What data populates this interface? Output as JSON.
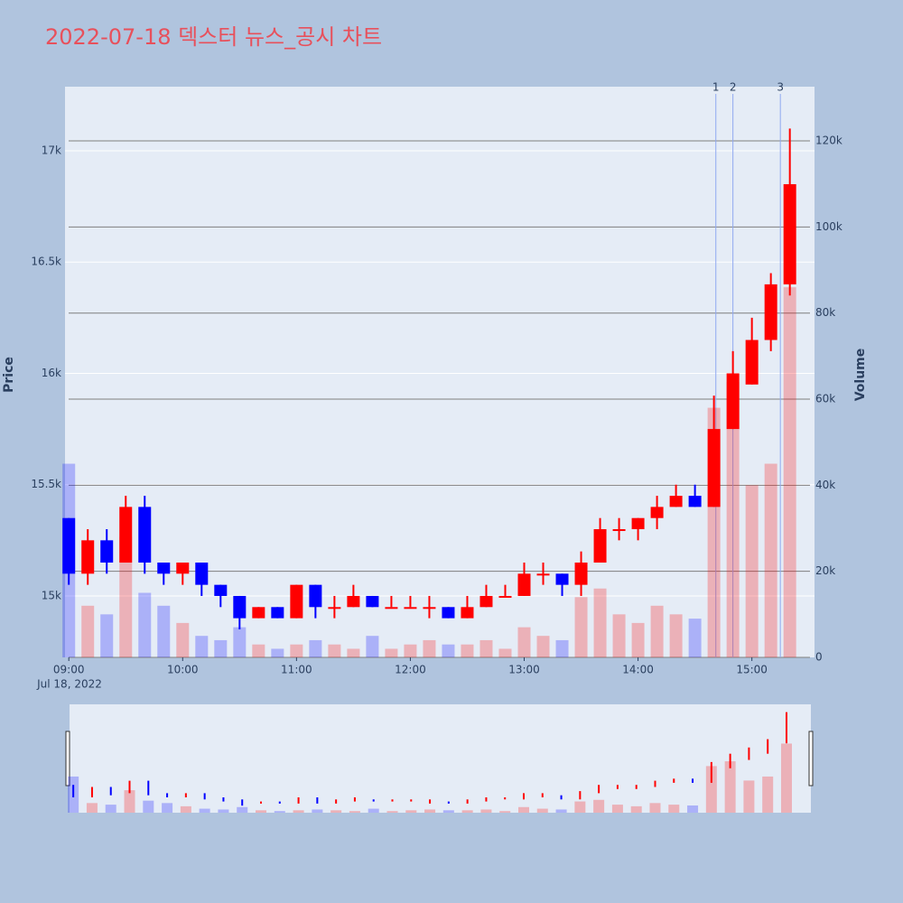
{
  "chart_data": {
    "type": "candlestick",
    "title": "2022-07-18 덱스터 뉴스_공시 차트",
    "y_label": "Price",
    "y2_label": "Volume",
    "date_label": "Jul 18, 2022",
    "increasing_color": "#ff0000",
    "decreasing_color": "#0000ff",
    "x": [
      "2022-07-18 09:00",
      "2022-07-18 09:10",
      "2022-07-18 09:20",
      "2022-07-18 09:30",
      "2022-07-18 09:40",
      "2022-07-18 09:50",
      "2022-07-18 10:00",
      "2022-07-18 10:10",
      "2022-07-18 10:20",
      "2022-07-18 10:30",
      "2022-07-18 10:40",
      "2022-07-18 10:50",
      "2022-07-18 11:00",
      "2022-07-18 11:10",
      "2022-07-18 11:20",
      "2022-07-18 11:30",
      "2022-07-18 11:40",
      "2022-07-18 11:50",
      "2022-07-18 12:00",
      "2022-07-18 12:10",
      "2022-07-18 12:20",
      "2022-07-18 12:30",
      "2022-07-18 12:40",
      "2022-07-18 12:50",
      "2022-07-18 13:00",
      "2022-07-18 13:10",
      "2022-07-18 13:20",
      "2022-07-18 13:30",
      "2022-07-18 13:40",
      "2022-07-18 13:50",
      "2022-07-18 14:00",
      "2022-07-18 14:10",
      "2022-07-18 14:20",
      "2022-07-18 14:30",
      "2022-07-18 14:40",
      "2022-07-18 14:50",
      "2022-07-18 15:00",
      "2022-07-18 15:10",
      "2022-07-18 15:20"
    ],
    "open": [
      15350,
      15100,
      15250,
      15150,
      15400,
      15150,
      15100,
      15150,
      15050,
      15000,
      14900,
      14950,
      14900,
      15050,
      14950,
      14950,
      15000,
      14950,
      14950,
      14950,
      14950,
      14900,
      14950,
      15000,
      15000,
      15100,
      15100,
      15050,
      15150,
      15300,
      15300,
      15350,
      15400,
      15450,
      15400,
      15750,
      15950,
      16150,
      16400
    ],
    "high": [
      15350,
      15300,
      15300,
      15450,
      15450,
      15150,
      15150,
      15150,
      15050,
      15000,
      14950,
      14950,
      15050,
      15050,
      15000,
      15050,
      15000,
      15000,
      15000,
      15000,
      14950,
      15000,
      15050,
      15050,
      15150,
      15150,
      15100,
      15200,
      15350,
      15350,
      15350,
      15450,
      15500,
      15500,
      15900,
      16100,
      16250,
      16450,
      17100
    ],
    "low": [
      15050,
      15050,
      15100,
      15150,
      15100,
      15050,
      15050,
      15000,
      14950,
      14850,
      14900,
      14900,
      14900,
      14900,
      14900,
      14950,
      14950,
      14950,
      14950,
      14900,
      14900,
      14900,
      14950,
      15000,
      15000,
      15050,
      15000,
      15000,
      15150,
      15250,
      15250,
      15300,
      15400,
      15400,
      15400,
      15750,
      15950,
      16100,
      16350
    ],
    "close": [
      15100,
      15250,
      15150,
      15400,
      15150,
      15100,
      15150,
      15050,
      15000,
      14900,
      14950,
      14900,
      15050,
      14950,
      14950,
      15000,
      14950,
      14950,
      14950,
      14950,
      14900,
      14950,
      15000,
      15000,
      15100,
      15100,
      15050,
      15150,
      15300,
      15300,
      15350,
      15400,
      15450,
      15400,
      15750,
      16000,
      16150,
      16400,
      16850
    ],
    "volume": [
      45000,
      12000,
      10000,
      28000,
      15000,
      12000,
      8000,
      5000,
      4000,
      7000,
      3000,
      2000,
      3000,
      4000,
      3000,
      2000,
      5000,
      2000,
      3000,
      4000,
      3000,
      3000,
      4000,
      2000,
      7000,
      5000,
      4000,
      14000,
      16000,
      10000,
      8000,
      12000,
      10000,
      9000,
      58000,
      64000,
      40000,
      45000,
      86000
    ],
    "xlim": [
      "2022-07-18 08:58",
      "2022-07-18 15:33"
    ],
    "xticks": [
      {
        "value": "2022-07-18 09:00",
        "label": "09:00"
      },
      {
        "value": "2022-07-18 10:00",
        "label": "10:00"
      },
      {
        "value": "2022-07-18 11:00",
        "label": "11:00"
      },
      {
        "value": "2022-07-18 12:00",
        "label": "12:00"
      },
      {
        "value": "2022-07-18 13:00",
        "label": "13:00"
      },
      {
        "value": "2022-07-18 14:00",
        "label": "14:00"
      },
      {
        "value": "2022-07-18 15:00",
        "label": "15:00"
      }
    ],
    "ylim": [
      14724,
      17288
    ],
    "yticks": [
      {
        "value": 15000,
        "label": "15k"
      },
      {
        "value": 15500,
        "label": "15.5k"
      },
      {
        "value": 16000,
        "label": "16k"
      },
      {
        "value": 16500,
        "label": "16.5k"
      },
      {
        "value": 17000,
        "label": "17k"
      }
    ],
    "y2lim": [
      0,
      132600
    ],
    "y2ticks": [
      0,
      {
        "value": 20000,
        "label": "20k"
      },
      {
        "value": 40000,
        "label": "40k"
      },
      {
        "value": 60000,
        "label": "60k"
      },
      {
        "value": 80000,
        "label": "80k"
      },
      {
        "value": 100000,
        "label": "100k"
      },
      {
        "value": 120000,
        "label": "120k"
      }
    ],
    "annotations": [
      {
        "x": "2022-07-18 14:41",
        "text": "1"
      },
      {
        "x": "2022-07-18 14:50",
        "text": "2"
      },
      {
        "x": "2022-07-18 15:15",
        "text": "3"
      }
    ]
  }
}
